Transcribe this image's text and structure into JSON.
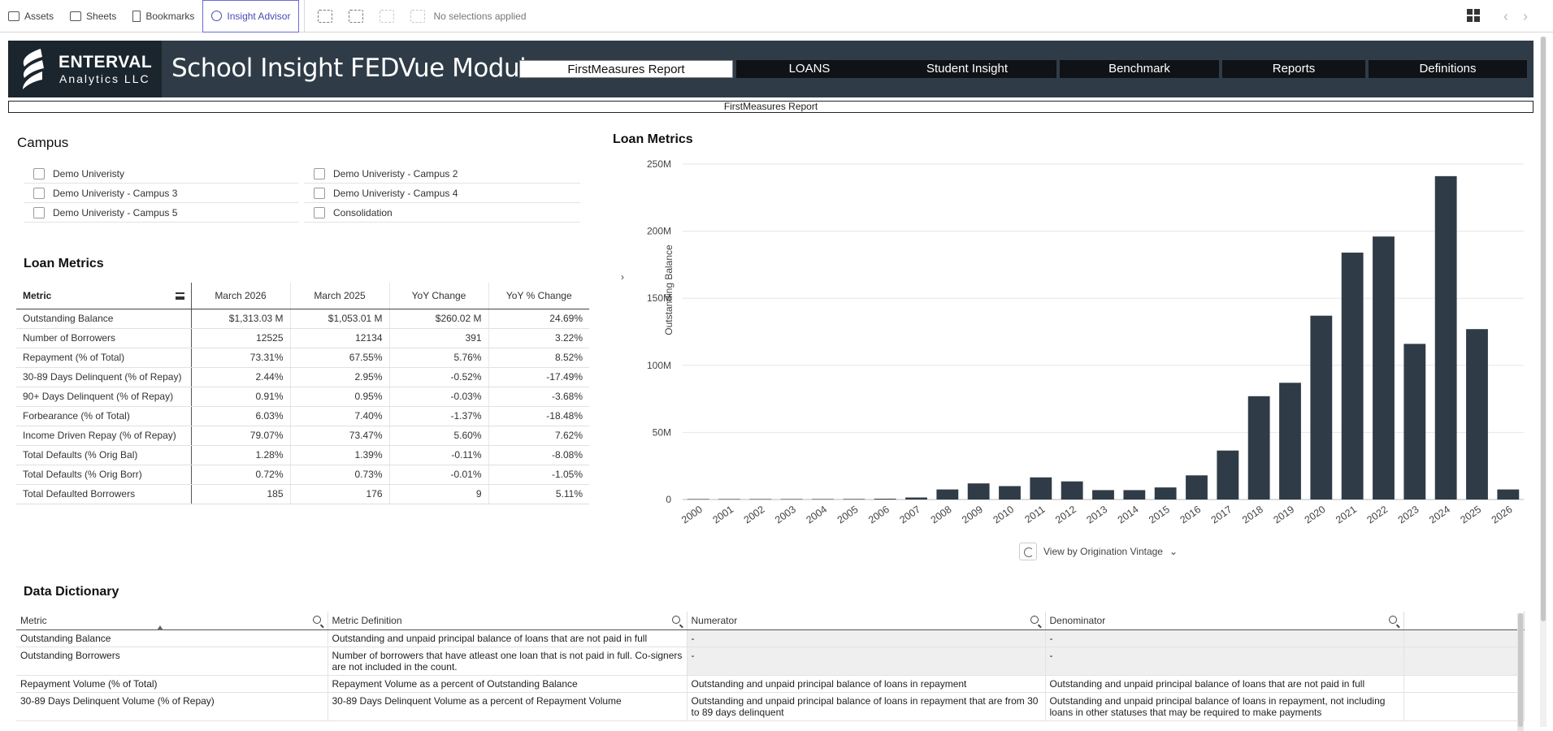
{
  "toolbar": {
    "assets": "Assets",
    "sheets": "Sheets",
    "bookmarks": "Bookmarks",
    "insight_advisor": "Insight Advisor",
    "selections": "No selections applied"
  },
  "banner": {
    "logo_name": "ENTERVAL",
    "logo_sub": "Analytics LLC",
    "title": "School Insight FEDVue Module",
    "nav": [
      "FirstMeasures Report",
      "LOANS",
      "Student Insight",
      "Benchmark",
      "Reports",
      "Definitions"
    ],
    "subtitle": "FirstMeasures Report"
  },
  "campus": {
    "title": "Campus",
    "items": [
      "Demo Univeristy",
      "Demo Univeristy - Campus 2",
      "Demo Univeristy - Campus 3",
      "Demo Univeristy - Campus 4",
      "Demo Univeristy - Campus 5",
      "Consolidation"
    ]
  },
  "metrics": {
    "title": "Loan Metrics",
    "headers": [
      "Metric",
      "March 2026",
      "March 2025",
      "YoY Change",
      "YoY % Change"
    ],
    "rows": [
      [
        "Outstanding Balance",
        "$1,313.03 M",
        "$1,053.01 M",
        "$260.02 M",
        "24.69%"
      ],
      [
        "Number of Borrowers",
        "12525",
        "12134",
        "391",
        "3.22%"
      ],
      [
        "Repayment (% of Total)",
        "73.31%",
        "67.55%",
        "5.76%",
        "8.52%"
      ],
      [
        "30-89 Days Delinquent (% of Repay)",
        "2.44%",
        "2.95%",
        "-0.52%",
        "-17.49%"
      ],
      [
        "90+ Days Delinquent (% of Repay)",
        "0.91%",
        "0.95%",
        "-0.03%",
        "-3.68%"
      ],
      [
        "Forbearance (% of Total)",
        "6.03%",
        "7.40%",
        "-1.37%",
        "-18.48%"
      ],
      [
        "Income Driven Repay (% of Repay)",
        "79.07%",
        "73.47%",
        "5.60%",
        "7.62%"
      ],
      [
        "Total Defaults (% Orig Bal)",
        "1.28%",
        "1.39%",
        "-0.11%",
        "-8.08%"
      ],
      [
        "Total Defaults (% Orig Borr)",
        "0.72%",
        "0.73%",
        "-0.01%",
        "-1.05%"
      ],
      [
        "Total Defaulted Borrowers",
        "185",
        "176",
        "9",
        "5.11%"
      ]
    ]
  },
  "chart_title": "Loan Metrics",
  "chart_data": {
    "type": "bar",
    "ylabel": "Outstanding Balance",
    "xlabel": "",
    "ylim": [
      0,
      250
    ],
    "yticks": [
      "0",
      "50M",
      "100M",
      "150M",
      "200M",
      "250M"
    ],
    "categories": [
      "2000",
      "2001",
      "2002",
      "2003",
      "2004",
      "2005",
      "2006",
      "2007",
      "2008",
      "2009",
      "2010",
      "2011",
      "2012",
      "2013",
      "2014",
      "2015",
      "2016",
      "2017",
      "2018",
      "2019",
      "2020",
      "2021",
      "2022",
      "2023",
      "2024",
      "2025",
      "2026"
    ],
    "values": [
      0.2,
      0.3,
      0.3,
      0.3,
      0.3,
      0.4,
      0.6,
      1.5,
      7.5,
      12,
      10,
      16.5,
      13.5,
      7,
      7,
      9,
      18,
      36.5,
      77,
      87,
      137,
      184,
      196,
      116,
      241,
      127,
      7.5
    ],
    "color": "#2f3c47",
    "grid": true
  },
  "view_control": "View by Origination Vintage",
  "dictionary": {
    "title": "Data Dictionary",
    "headers": [
      "Metric",
      "Metric Definition",
      "Numerator",
      "Denominator"
    ],
    "rows": [
      [
        "Outstanding Balance",
        "Outstanding and unpaid principal balance of loans that are not paid in full",
        "-",
        "-"
      ],
      [
        "Outstanding Borrowers",
        "Number of borrowers that have atleast one loan that is not paid in full. Co-signers are not included in the count.",
        "-",
        "-"
      ],
      [
        "Repayment Volume (% of Total)",
        "Repayment Volume as a percent of Outstanding Balance",
        "Outstanding and unpaid principal balance of loans in repayment",
        "Outstanding and unpaid principal balance of loans that are not paid in full"
      ],
      [
        "30-89 Days Delinquent Volume (% of Repay)",
        "30-89 Days Delinquent Volume as a percent of Repayment Volume",
        "Outstanding and unpaid principal balance of loans in repayment that are from 30 to 89 days delinquent",
        "Outstanding and unpaid principal balance of loans in repayment, not including loans in other statuses that may be required to make payments"
      ]
    ]
  }
}
